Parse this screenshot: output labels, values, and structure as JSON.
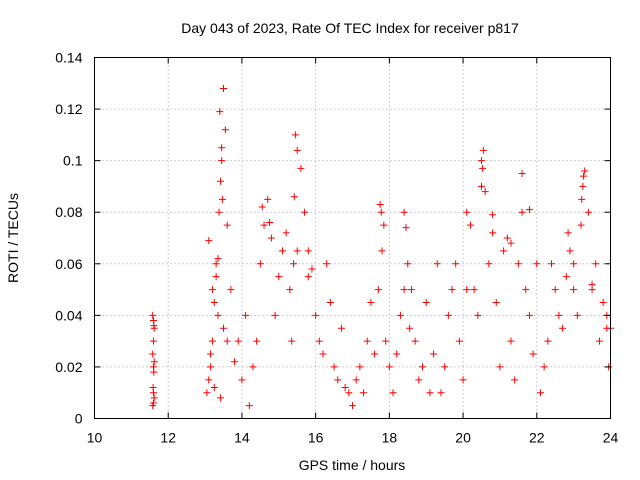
{
  "chart_data": {
    "type": "scatter",
    "title": "Day 043 of 2023, Rate Of TEC Index for receiver p817",
    "xlabel": "GPS time / hours",
    "ylabel": "ROTI / TECUs",
    "xlim": [
      10,
      24
    ],
    "ylim": [
      0,
      0.14
    ],
    "x_ticks": [
      "10",
      "12",
      "14",
      "16",
      "18",
      "20",
      "22",
      "24"
    ],
    "y_ticks": [
      "0",
      "0.02",
      "0.04",
      "0.06",
      "0.08",
      "0.1",
      "0.12",
      "0.14"
    ],
    "grid": true,
    "marker": "plus",
    "color": "#ff0000",
    "series": [
      {
        "x": [
          11.58,
          11.6,
          11.62,
          11.6,
          11.58,
          11.62,
          11.6,
          11.61,
          11.59,
          11.6,
          11.62,
          11.6,
          11.58,
          11.61,
          13.05,
          13.1,
          13.15,
          13.2,
          13.25,
          13.3,
          13.35,
          13.38,
          13.42,
          13.45,
          13.5,
          13.55,
          13.6,
          13.4,
          13.45,
          13.47,
          13.3,
          13.2,
          13.35,
          13.5,
          13.15,
          13.25,
          13.42,
          13.6,
          13.1,
          13.7,
          13.8,
          13.9,
          14.0,
          14.1,
          14.2,
          14.3,
          14.4,
          14.5,
          14.55,
          14.6,
          14.7,
          14.8,
          14.9,
          15.0,
          15.1,
          15.2,
          15.3,
          15.4,
          15.45,
          15.5,
          15.6,
          15.7,
          15.8,
          15.9,
          16.0,
          16.1,
          16.2,
          16.3,
          16.4,
          16.5,
          16.6,
          16.7,
          16.8,
          14.75,
          15.35,
          15.42,
          15.5,
          15.8,
          16.9,
          17.0,
          17.1,
          17.2,
          17.3,
          17.4,
          17.5,
          17.6,
          17.7,
          17.75,
          17.8,
          17.85,
          17.9,
          18.0,
          18.1,
          18.2,
          18.3,
          18.4,
          18.45,
          18.5,
          18.6,
          18.7,
          18.8,
          18.9,
          19.0,
          19.1,
          19.2,
          19.3,
          17.78,
          18.4,
          18.55,
          19.4,
          19.5,
          19.6,
          19.7,
          19.8,
          19.9,
          20.0,
          20.1,
          20.2,
          20.3,
          20.4,
          20.5,
          20.55,
          20.6,
          20.7,
          20.8,
          20.9,
          21.0,
          21.1,
          21.2,
          21.3,
          21.4,
          21.5,
          21.6,
          21.7,
          21.8,
          21.9,
          22.0,
          20.1,
          20.5,
          20.53,
          20.8,
          21.3,
          21.6,
          21.8,
          22.1,
          22.2,
          22.3,
          22.4,
          22.5,
          22.6,
          22.7,
          22.8,
          22.9,
          23.0,
          23.1,
          23.2,
          23.25,
          23.3,
          23.4,
          23.5,
          23.6,
          23.7,
          23.8,
          23.9,
          24.0,
          23.22,
          23.27,
          22.85,
          23.0,
          23.5,
          23.9,
          23.95
        ],
        "y": [
          0.04,
          0.038,
          0.035,
          0.03,
          0.025,
          0.022,
          0.02,
          0.018,
          0.012,
          0.01,
          0.008,
          0.006,
          0.005,
          0.036,
          0.01,
          0.015,
          0.02,
          0.03,
          0.045,
          0.055,
          0.062,
          0.08,
          0.092,
          0.1,
          0.128,
          0.112,
          0.075,
          0.119,
          0.105,
          0.085,
          0.06,
          0.05,
          0.04,
          0.035,
          0.025,
          0.012,
          0.008,
          0.03,
          0.069,
          0.05,
          0.022,
          0.03,
          0.015,
          0.04,
          0.005,
          0.02,
          0.03,
          0.06,
          0.082,
          0.075,
          0.085,
          0.07,
          0.04,
          0.055,
          0.065,
          0.072,
          0.05,
          0.06,
          0.11,
          0.104,
          0.097,
          0.08,
          0.065,
          0.058,
          0.04,
          0.03,
          0.025,
          0.06,
          0.045,
          0.02,
          0.015,
          0.035,
          0.012,
          0.076,
          0.03,
          0.086,
          0.065,
          0.055,
          0.01,
          0.005,
          0.015,
          0.02,
          0.01,
          0.03,
          0.045,
          0.025,
          0.05,
          0.083,
          0.065,
          0.075,
          0.03,
          0.02,
          0.01,
          0.025,
          0.04,
          0.08,
          0.074,
          0.06,
          0.05,
          0.03,
          0.015,
          0.02,
          0.045,
          0.01,
          0.025,
          0.06,
          0.08,
          0.05,
          0.035,
          0.01,
          0.02,
          0.04,
          0.05,
          0.06,
          0.03,
          0.015,
          0.08,
          0.075,
          0.05,
          0.04,
          0.1,
          0.104,
          0.088,
          0.06,
          0.072,
          0.045,
          0.02,
          0.065,
          0.07,
          0.03,
          0.015,
          0.06,
          0.08,
          0.05,
          0.04,
          0.025,
          0.06,
          0.05,
          0.09,
          0.097,
          0.079,
          0.068,
          0.095,
          0.081,
          0.01,
          0.02,
          0.03,
          0.06,
          0.05,
          0.04,
          0.035,
          0.055,
          0.065,
          0.06,
          0.04,
          0.075,
          0.09,
          0.096,
          0.08,
          0.05,
          0.06,
          0.03,
          0.045,
          0.04,
          0.035,
          0.085,
          0.094,
          0.072,
          0.05,
          0.052,
          0.035,
          0.02
        ]
      }
    ]
  }
}
